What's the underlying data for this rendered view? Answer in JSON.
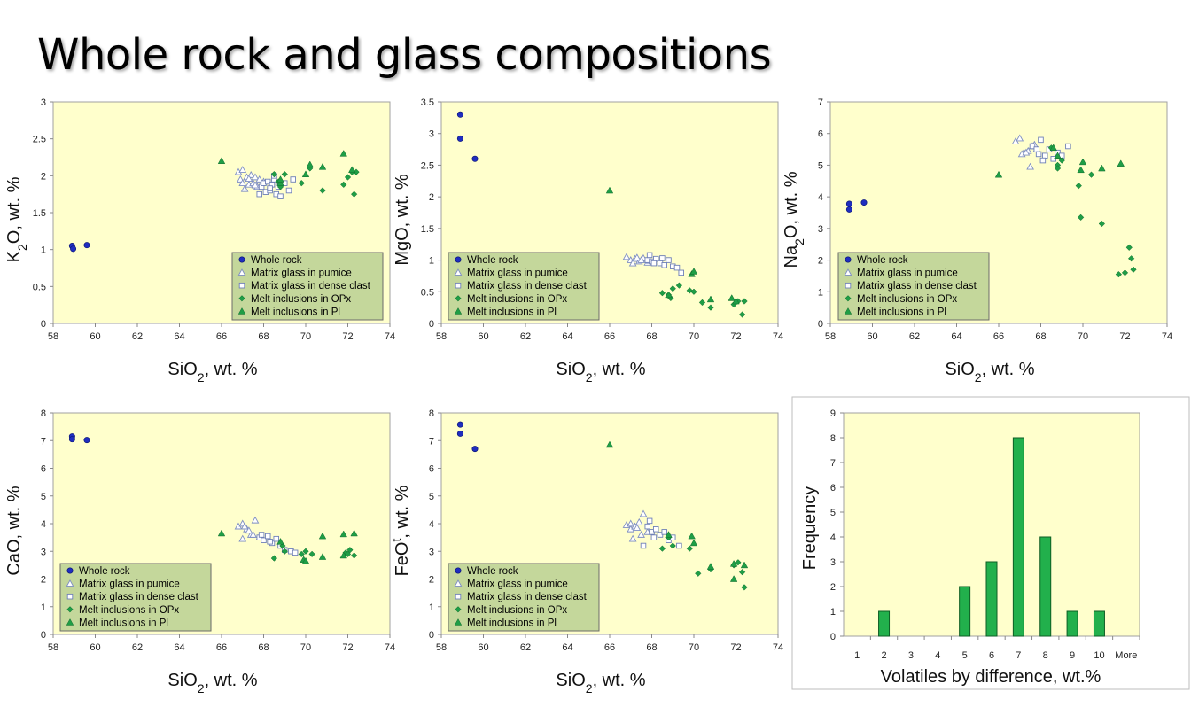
{
  "slide": {
    "title": "Whole rock and glass compositions"
  },
  "legend_series": [
    "Whole rock",
    "Matrix glass in pumice",
    "Matrix glass in dense clast",
    "Melt inclusions in OPx",
    "Melt inclusions in Pl"
  ],
  "colors": {
    "whole_rock": "#1f2dbf",
    "pumice": "#a9b6d9",
    "dense": "#7d8cc0",
    "opx": "#1f9e46",
    "pl": "#1f9e46",
    "plot_bg": "#ffffcc",
    "legend_bg": "#c4d79b",
    "bar": "#22b04c"
  },
  "chart_data": [
    {
      "type": "scatter",
      "ylabel_parts": [
        "K",
        "2",
        "O, wt. %"
      ],
      "xlabel_parts": [
        "SiO",
        "2",
        ", wt. %"
      ],
      "xlim": [
        58,
        74
      ],
      "ylim": [
        0,
        3
      ],
      "xticks": [
        "58",
        "60",
        "62",
        "64",
        "66",
        "68",
        "70",
        "72",
        "74"
      ],
      "yticks": [
        "0",
        "0.5",
        "1",
        "1.5",
        "2",
        "2.5",
        "3"
      ],
      "legend_position": "bottom-right",
      "series": [
        {
          "name": "Whole rock",
          "x": [
            58.9,
            58.95,
            59.6
          ],
          "y": [
            1.05,
            1.01,
            1.06
          ]
        },
        {
          "name": "Matrix glass in pumice",
          "x": [
            66.8,
            66.9,
            67.0,
            67.1,
            67.2,
            67.3,
            67.4,
            67.5,
            67.6,
            67.7,
            67.8,
            68.0,
            67.0,
            67.3,
            67.6
          ],
          "y": [
            2.05,
            1.95,
            2.08,
            1.82,
            1.98,
            1.88,
            2.01,
            1.9,
            1.98,
            1.85,
            1.95,
            1.92,
            1.9,
            1.96,
            1.87
          ]
        },
        {
          "name": "Matrix glass in dense clast",
          "x": [
            67.8,
            67.9,
            68.0,
            68.1,
            68.2,
            68.3,
            68.4,
            68.5,
            68.6,
            68.7,
            68.8,
            69.0,
            69.2,
            69.4,
            68.3,
            68.5
          ],
          "y": [
            1.75,
            1.85,
            1.9,
            1.78,
            1.92,
            1.8,
            1.88,
            1.95,
            1.75,
            1.85,
            1.72,
            1.9,
            1.8,
            1.95,
            1.83,
            2.0
          ]
        },
        {
          "name": "Melt inclusions in OPx",
          "x": [
            68.5,
            68.8,
            69.0,
            69.8,
            70.2,
            70.8,
            71.8,
            72.0,
            72.2,
            72.4,
            72.3,
            68.7
          ],
          "y": [
            2.02,
            1.85,
            2.02,
            1.9,
            2.1,
            1.8,
            1.88,
            1.98,
            2.05,
            2.05,
            1.75,
            1.92
          ]
        },
        {
          "name": "Melt inclusions in Pl",
          "x": [
            66.0,
            68.8,
            70.0,
            70.2,
            70.8,
            71.8,
            72.2,
            68.8
          ],
          "y": [
            2.2,
            1.9,
            2.02,
            2.15,
            2.12,
            2.3,
            2.08,
            1.95
          ]
        }
      ]
    },
    {
      "type": "scatter",
      "ylabel_parts": [
        "MgO, wt. %"
      ],
      "xlabel_parts": [
        "SiO",
        "2",
        ", wt. %"
      ],
      "xlim": [
        58,
        74
      ],
      "ylim": [
        0,
        3.5
      ],
      "xticks": [
        "58",
        "60",
        "62",
        "64",
        "66",
        "68",
        "70",
        "72",
        "74"
      ],
      "yticks": [
        "0",
        "0.5",
        "1",
        "1.5",
        "2",
        "2.5",
        "3",
        "3.5"
      ],
      "legend_position": "bottom-left",
      "series": [
        {
          "name": "Whole rock",
          "x": [
            58.9,
            58.9,
            59.6
          ],
          "y": [
            3.3,
            2.92,
            2.6
          ]
        },
        {
          "name": "Matrix glass in pumice",
          "x": [
            66.8,
            67.0,
            67.2,
            67.4,
            67.6,
            67.8,
            67.1,
            67.5,
            67.3,
            67.9
          ],
          "y": [
            1.05,
            1.0,
            1.02,
            0.98,
            1.03,
            0.96,
            0.95,
            1.0,
            1.04,
            0.99
          ]
        },
        {
          "name": "Matrix glass in dense clast",
          "x": [
            67.8,
            68.0,
            68.2,
            68.4,
            68.6,
            68.8,
            69.0,
            69.2,
            69.4,
            68.1,
            68.5,
            67.9
          ],
          "y": [
            1.0,
            0.98,
            1.02,
            0.95,
            0.92,
            1.0,
            0.9,
            0.88,
            0.8,
            0.95,
            1.03,
            1.08
          ]
        },
        {
          "name": "Melt inclusions in OPx",
          "x": [
            68.5,
            68.8,
            68.9,
            69.0,
            69.3,
            69.8,
            70.0,
            70.4,
            70.8,
            71.9,
            72.1,
            72.3,
            72.4
          ],
          "y": [
            0.48,
            0.45,
            0.4,
            0.55,
            0.6,
            0.52,
            0.5,
            0.33,
            0.25,
            0.3,
            0.35,
            0.14,
            0.35
          ]
        },
        {
          "name": "Melt inclusions in Pl",
          "x": [
            66.0,
            69.9,
            70.0,
            70.8,
            71.8,
            72.0,
            68.8
          ],
          "y": [
            2.1,
            0.78,
            0.82,
            0.38,
            0.4,
            0.35,
            0.45
          ]
        }
      ]
    },
    {
      "type": "scatter",
      "ylabel_parts": [
        "Na",
        "2",
        "O, wt. %"
      ],
      "xlabel_parts": [
        "SiO",
        "2",
        ", wt. %"
      ],
      "xlim": [
        58,
        74
      ],
      "ylim": [
        0,
        7
      ],
      "xticks": [
        "58",
        "60",
        "62",
        "64",
        "66",
        "68",
        "70",
        "72",
        "74"
      ],
      "yticks": [
        "0",
        "1",
        "2",
        "3",
        "4",
        "5",
        "6",
        "7"
      ],
      "legend_position": "bottom-left",
      "series": [
        {
          "name": "Whole rock",
          "x": [
            58.9,
            58.9,
            59.6
          ],
          "y": [
            3.78,
            3.6,
            3.82
          ]
        },
        {
          "name": "Matrix glass in pumice",
          "x": [
            66.8,
            67.0,
            67.2,
            67.4,
            67.6,
            67.8,
            67.1,
            67.5,
            67.3,
            67.7
          ],
          "y": [
            5.75,
            5.85,
            5.4,
            5.45,
            5.6,
            5.5,
            5.35,
            4.95,
            5.4,
            5.65
          ]
        },
        {
          "name": "Matrix glass in dense clast",
          "x": [
            67.6,
            67.8,
            68.0,
            68.2,
            68.4,
            68.6,
            68.8,
            69.0,
            69.3,
            68.1,
            67.9
          ],
          "y": [
            5.6,
            5.5,
            5.8,
            5.3,
            5.5,
            5.2,
            5.4,
            5.3,
            5.6,
            5.15,
            5.35
          ]
        },
        {
          "name": "Melt inclusions in OPx",
          "x": [
            68.5,
            68.8,
            68.8,
            69.0,
            69.8,
            69.9,
            70.4,
            70.9,
            71.7,
            72.0,
            72.2,
            72.4,
            72.3
          ],
          "y": [
            5.55,
            5.0,
            4.9,
            5.15,
            4.35,
            3.35,
            4.7,
            3.15,
            1.55,
            1.6,
            2.4,
            1.7,
            2.05
          ]
        },
        {
          "name": "Melt inclusions in Pl",
          "x": [
            66.0,
            68.8,
            69.9,
            70.0,
            70.9,
            71.8,
            68.6
          ],
          "y": [
            4.7,
            5.3,
            4.85,
            5.1,
            4.9,
            5.05,
            5.55
          ]
        }
      ]
    },
    {
      "type": "scatter",
      "ylabel_parts": [
        "CaO, wt. %"
      ],
      "xlabel_parts": [
        "SiO",
        "2",
        ", wt. %"
      ],
      "xlim": [
        58,
        74
      ],
      "ylim": [
        0,
        8
      ],
      "xticks": [
        "58",
        "60",
        "62",
        "64",
        "66",
        "68",
        "70",
        "72",
        "74"
      ],
      "yticks": [
        "0",
        "1",
        "2",
        "3",
        "4",
        "5",
        "6",
        "7",
        "8"
      ],
      "legend_position": "bottom-left",
      "series": [
        {
          "name": "Whole rock",
          "x": [
            58.9,
            58.9,
            59.6
          ],
          "y": [
            7.15,
            7.05,
            7.02
          ]
        },
        {
          "name": "Matrix glass in pumice",
          "x": [
            66.8,
            67.0,
            67.2,
            67.4,
            67.6,
            67.8,
            67.0,
            67.5,
            67.3,
            67.1
          ],
          "y": [
            3.9,
            4.0,
            3.8,
            3.6,
            4.12,
            3.5,
            3.45,
            3.6,
            3.75,
            3.9
          ]
        },
        {
          "name": "Matrix glass in dense clast",
          "x": [
            67.8,
            68.0,
            68.2,
            68.4,
            68.6,
            68.8,
            69.0,
            69.3,
            69.5,
            67.9,
            68.3
          ],
          "y": [
            3.5,
            3.4,
            3.55,
            3.3,
            3.45,
            3.2,
            3.05,
            3.0,
            2.95,
            3.6,
            3.35
          ]
        },
        {
          "name": "Melt inclusions in OPx",
          "x": [
            68.5,
            68.9,
            69.0,
            69.8,
            70.0,
            70.3,
            71.9,
            72.1,
            72.3,
            72.0
          ],
          "y": [
            2.75,
            3.2,
            3.0,
            2.9,
            3.0,
            2.9,
            2.95,
            3.05,
            2.85,
            2.9
          ]
        },
        {
          "name": "Melt inclusions in Pl",
          "x": [
            66.0,
            68.8,
            69.9,
            70.0,
            70.8,
            71.8,
            72.3,
            70.8,
            71.8
          ],
          "y": [
            3.65,
            3.35,
            2.7,
            2.65,
            3.55,
            3.62,
            3.65,
            2.8,
            2.85
          ]
        }
      ]
    },
    {
      "type": "scatter",
      "ylabel_parts": [
        "FeO",
        "t",
        ", wt. %"
      ],
      "xlabel_parts": [
        "SiO",
        "2",
        ", wt. %"
      ],
      "xlim": [
        58,
        74
      ],
      "ylim": [
        0,
        8
      ],
      "xticks": [
        "58",
        "60",
        "62",
        "64",
        "66",
        "68",
        "70",
        "72",
        "74"
      ],
      "yticks": [
        "0",
        "1",
        "2",
        "3",
        "4",
        "5",
        "6",
        "7",
        "8"
      ],
      "legend_position": "bottom-left",
      "series": [
        {
          "name": "Whole rock",
          "x": [
            58.9,
            58.9,
            59.6
          ],
          "y": [
            7.58,
            7.25,
            6.7
          ]
        },
        {
          "name": "Matrix glass in pumice",
          "x": [
            66.8,
            67.0,
            67.2,
            67.4,
            67.6,
            67.8,
            67.1,
            67.5,
            67.3,
            67.0
          ],
          "y": [
            3.95,
            3.8,
            3.9,
            4.05,
            4.35,
            3.7,
            3.45,
            3.6,
            3.85,
            4.0
          ]
        },
        {
          "name": "Matrix glass in dense clast",
          "x": [
            67.8,
            68.0,
            68.2,
            68.4,
            68.6,
            68.8,
            69.0,
            69.3,
            67.9,
            68.1,
            67.6
          ],
          "y": [
            3.9,
            3.7,
            3.8,
            3.6,
            3.7,
            3.4,
            3.5,
            3.2,
            4.1,
            3.5,
            3.2
          ]
        },
        {
          "name": "Melt inclusions in OPx",
          "x": [
            68.5,
            68.8,
            69.0,
            69.8,
            70.2,
            70.8,
            71.9,
            72.1,
            72.3,
            72.4
          ],
          "y": [
            3.1,
            3.5,
            3.2,
            3.1,
            2.2,
            2.35,
            2.5,
            2.6,
            2.25,
            1.7
          ]
        },
        {
          "name": "Melt inclusions in Pl",
          "x": [
            66.0,
            68.8,
            69.9,
            70.0,
            70.8,
            71.9,
            72.4,
            71.9
          ],
          "y": [
            6.85,
            3.6,
            3.55,
            3.3,
            2.45,
            2.0,
            2.5,
            2.55
          ]
        }
      ]
    },
    {
      "type": "bar",
      "ylabel_parts": [
        "Frequency"
      ],
      "xlabel_parts": [
        "Volatiles by difference, wt.%"
      ],
      "categories": [
        "1",
        "2",
        "3",
        "4",
        "5",
        "6",
        "7",
        "8",
        "9",
        "10",
        "More"
      ],
      "values": [
        0,
        1,
        0,
        0,
        2,
        3,
        8,
        4,
        1,
        1,
        0
      ],
      "ylim": [
        0,
        9
      ],
      "yticks": [
        "0",
        "1",
        "2",
        "3",
        "4",
        "5",
        "6",
        "7",
        "8",
        "9"
      ]
    }
  ]
}
